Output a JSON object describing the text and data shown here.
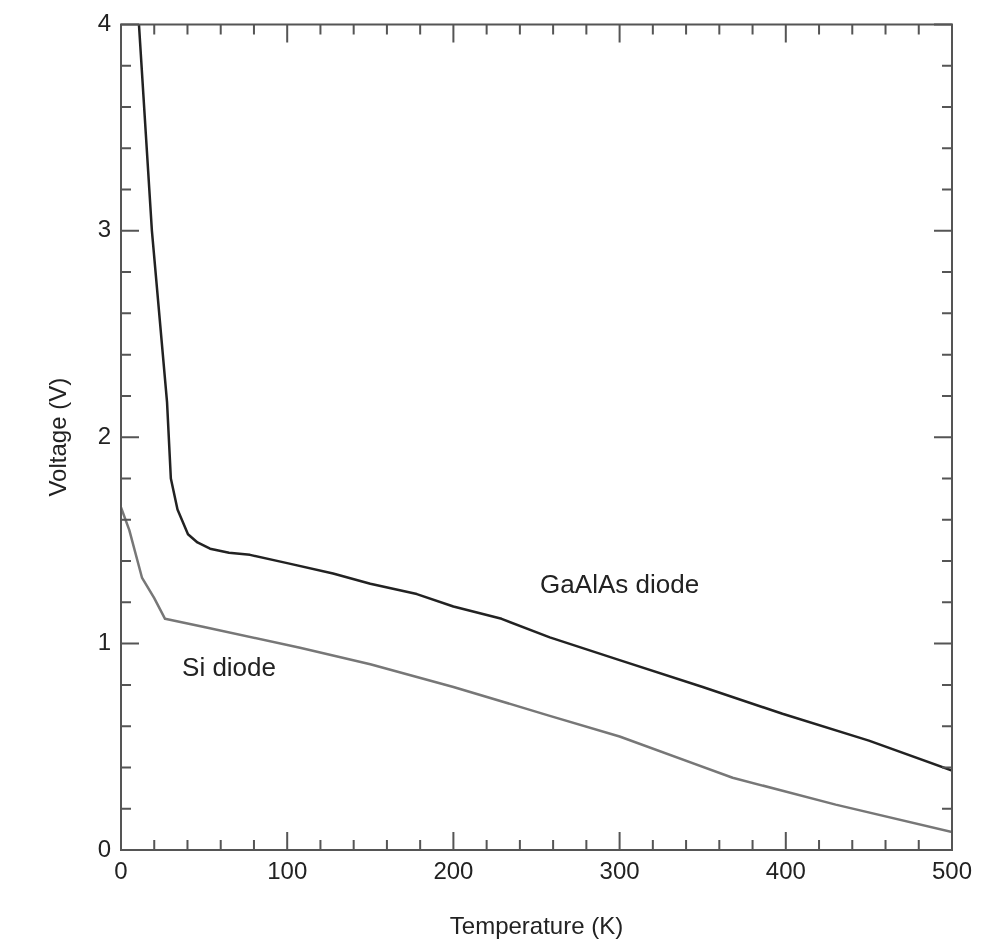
{
  "chart_data": {
    "type": "line",
    "xlabel": "Temperature (K)",
    "ylabel": "Voltage (V)",
    "xlim": [
      0,
      500
    ],
    "ylim": [
      0,
      4
    ],
    "xticks": [
      0,
      {
        "value": 20,
        "label": null
      },
      {
        "value": 40,
        "label": null
      },
      {
        "value": 60,
        "label": null
      },
      {
        "value": 80,
        "label": null
      },
      100,
      {
        "value": 120,
        "label": null
      },
      {
        "value": 140,
        "label": null
      },
      {
        "value": 160,
        "label": null
      },
      {
        "value": 180,
        "label": null
      },
      200,
      {
        "value": 220,
        "label": null
      },
      {
        "value": 240,
        "label": null
      },
      {
        "value": 260,
        "label": null
      },
      {
        "value": 280,
        "label": null
      },
      300,
      {
        "value": 320,
        "label": null
      },
      {
        "value": 340,
        "label": null
      },
      {
        "value": 360,
        "label": null
      },
      {
        "value": 380,
        "label": null
      },
      400,
      {
        "value": 420,
        "label": null
      },
      {
        "value": 440,
        "label": null
      },
      {
        "value": 460,
        "label": null
      },
      {
        "value": 480,
        "label": null
      },
      500
    ],
    "yticks": [
      0,
      {
        "value": 0.2,
        "label": null
      },
      {
        "value": 0.4,
        "label": null
      },
      {
        "value": 0.6,
        "label": null
      },
      {
        "value": 0.8,
        "label": null
      },
      1,
      {
        "value": 1.2,
        "label": null
      },
      {
        "value": 1.4,
        "label": null
      },
      {
        "value": 1.6,
        "label": null
      },
      {
        "value": 1.8,
        "label": null
      },
      2,
      {
        "value": 2.2,
        "label": null
      },
      {
        "value": 2.4,
        "label": null
      },
      {
        "value": 2.6,
        "label": null
      },
      {
        "value": 2.8,
        "label": null
      },
      3,
      {
        "value": 3.2,
        "label": null
      },
      {
        "value": 3.4,
        "label": null
      },
      {
        "value": 3.6,
        "label": null
      },
      {
        "value": 3.8,
        "label": null
      },
      4
    ],
    "grid": false,
    "legend": false,
    "marker": "none",
    "line_style": "solid",
    "series": [
      {
        "name": "GaAlAs diode",
        "color": "#222222",
        "x": [
          10.8,
          18.6,
          27.7,
          30,
          34,
          40.3,
          46,
          53.6,
          65,
          77.6,
          100,
          127.6,
          150,
          178,
          200,
          229,
          258,
          300,
          350,
          398,
          450,
          500
        ],
        "values": [
          4,
          3,
          2.17,
          1.8,
          1.65,
          1.53,
          1.49,
          1.46,
          1.44,
          1.43,
          1.39,
          1.34,
          1.29,
          1.24,
          1.18,
          1.12,
          1.03,
          0.92,
          0.79,
          0.66,
          0.53,
          0.385
        ]
      },
      {
        "name": "Si diode",
        "color": "#777777",
        "x": [
          0,
          5,
          12.6,
          20,
          26.5,
          50,
          107.7,
          150,
          200,
          258,
          300,
          368,
          430,
          500
        ],
        "values": [
          1.66,
          1.55,
          1.32,
          1.22,
          1.12,
          1.08,
          0.98,
          0.9,
          0.79,
          0.65,
          0.55,
          0.35,
          0.22,
          0.087
        ]
      }
    ]
  }
}
